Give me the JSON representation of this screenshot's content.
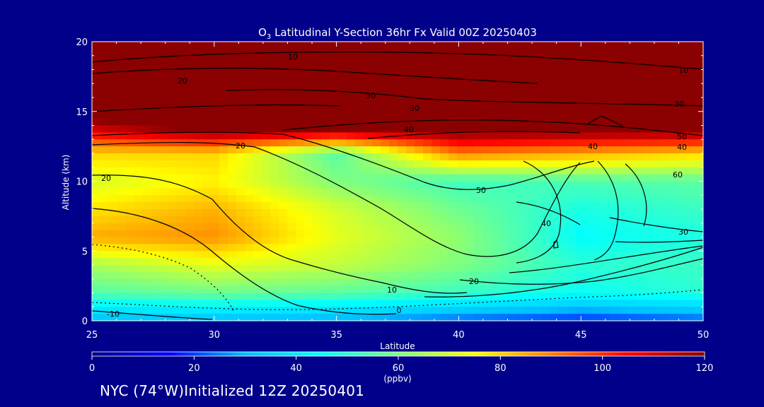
{
  "chart_data": {
    "type": "heatmap",
    "title_species": "O",
    "title_sub": "3",
    "title_rest": " Latitudinal Y-Section 36hr  Fx Valid 00Z 20250403",
    "xlabel": "Latitude",
    "ylabel": "Altitude (km)",
    "xlim": [
      25,
      50
    ],
    "ylim": [
      0,
      20
    ],
    "xticks": [
      "25",
      "30",
      "35",
      "40",
      "45",
      "50"
    ],
    "yticks": [
      "0",
      "5",
      "10",
      "15",
      "20"
    ],
    "colorbar": {
      "min": 0,
      "max": 120,
      "ticks": [
        "0",
        "20",
        "40",
        "60",
        "80",
        "100",
        "120"
      ],
      "unit": "(ppbv)",
      "colors": [
        "#00008b",
        "#0000ff",
        "#00bfff",
        "#00ffff",
        "#7fff7f",
        "#ffff00",
        "#ff7f00",
        "#ff0000",
        "#8b0000"
      ]
    },
    "ozone_field_ppbv": {
      "lats": [
        25,
        30,
        35,
        40,
        45,
        50
      ],
      "alts": [
        0,
        2,
        4,
        6,
        8,
        10,
        12,
        14,
        16,
        18,
        20
      ],
      "values": [
        [
          30,
          30,
          28,
          22,
          18,
          22
        ],
        [
          55,
          58,
          56,
          52,
          46,
          50
        ],
        [
          65,
          72,
          68,
          60,
          50,
          52
        ],
        [
          85,
          88,
          72,
          62,
          45,
          48
        ],
        [
          78,
          84,
          70,
          58,
          48,
          52
        ],
        [
          70,
          76,
          60,
          52,
          54,
          56
        ],
        [
          80,
          80,
          55,
          90,
          85,
          80
        ],
        [
          115,
          130,
          130,
          130,
          130,
          130
        ],
        [
          140,
          140,
          140,
          140,
          140,
          140
        ],
        [
          140,
          140,
          140,
          140,
          140,
          140
        ],
        [
          140,
          140,
          140,
          140,
          140,
          140
        ]
      ]
    },
    "contour_labels": [
      "10",
      "10",
      "20",
      "20",
      "30",
      "30",
      "30",
      "40",
      "40",
      "40",
      "40",
      "50",
      "50",
      "60",
      "20",
      "10",
      "0",
      "-10",
      "30",
      "20",
      "10",
      "0",
      "40",
      "30"
    ]
  },
  "footer": {
    "text": "NYC (74°W)Initialized 12Z 20250401"
  },
  "colors": {
    "background": "#00008b",
    "text": "#ffffff",
    "contour": "#000000"
  }
}
